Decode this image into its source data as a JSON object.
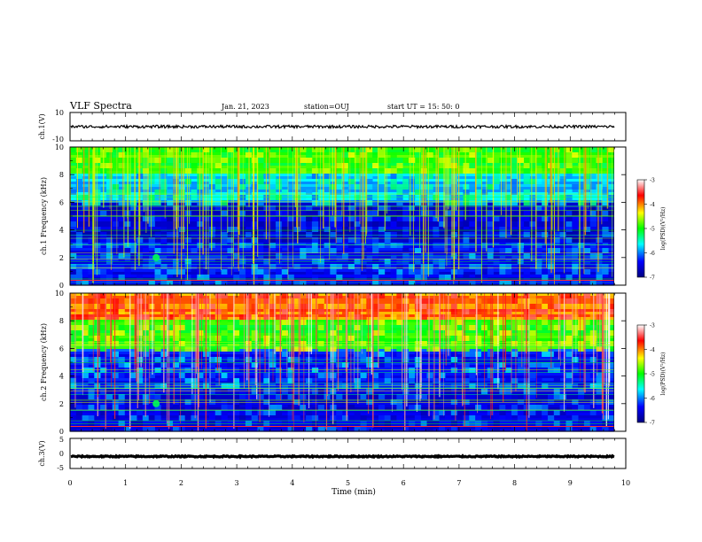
{
  "header": {
    "title": "VLF Spectra",
    "date": "Jan. 21, 2023",
    "station": "station=OUJ",
    "start": "start UT = 15: 50: 0"
  },
  "chart_data": {
    "type": "heatmap",
    "xlabel": "Time (min)",
    "xlim": [
      0,
      10
    ],
    "x_ticks": [
      "0",
      "1",
      "2",
      "3",
      "4",
      "5",
      "6",
      "7",
      "8",
      "9",
      "10"
    ],
    "panels": [
      {
        "id": "ch1_waveform",
        "type": "line",
        "ylabel": "ch.1(V)",
        "ylim": [
          -10,
          10
        ],
        "y_ticks": [
          "10",
          "-10"
        ],
        "trace_level": 0,
        "trace_amplitude": 1
      },
      {
        "id": "ch1_spectrogram",
        "type": "heatmap",
        "ylabel": "ch.1 Frequency (kHz)",
        "ylim": [
          0,
          10
        ],
        "y_ticks": [
          "0",
          "2",
          "4",
          "6",
          "8",
          "10"
        ],
        "colorbar": {
          "label": "log(PSD)(V²/Hz)",
          "range": [
            -7,
            -3
          ],
          "ticks": [
            "-3",
            "-4",
            "-5",
            "-6",
            "-7"
          ]
        },
        "band_levels": [
          {
            "f_from": 8,
            "f_to": 10,
            "log_psd": -5.0
          },
          {
            "f_from": 6,
            "f_to": 8,
            "log_psd": -5.8
          },
          {
            "f_from": 3,
            "f_to": 6,
            "log_psd": -6.6
          },
          {
            "f_from": 0,
            "f_to": 3,
            "log_psd": -6.4
          }
        ],
        "features": [
          {
            "t_min": 1.55,
            "f_khz": 2.0,
            "log_psd": -5.2
          }
        ]
      },
      {
        "id": "ch2_spectrogram",
        "type": "heatmap",
        "ylabel": "ch.2 Frequency (kHz)",
        "ylim": [
          0,
          10
        ],
        "y_ticks": [
          "0",
          "2",
          "4",
          "6",
          "8",
          "10"
        ],
        "colorbar": {
          "label": "log(PSD)(V²/Hz)",
          "range": [
            -7,
            -3
          ],
          "ticks": [
            "-3",
            "-4",
            "-5",
            "-6",
            "-7"
          ]
        },
        "band_levels": [
          {
            "f_from": 8,
            "f_to": 10,
            "log_psd": -4.0
          },
          {
            "f_from": 6,
            "f_to": 8,
            "log_psd": -4.9
          },
          {
            "f_from": 3,
            "f_to": 6,
            "log_psd": -6.3
          },
          {
            "f_from": 0,
            "f_to": 3,
            "log_psd": -6.5
          }
        ],
        "features": [
          {
            "t_min": 1.55,
            "f_khz": 2.0,
            "log_psd": -5.2
          }
        ]
      },
      {
        "id": "ch3_waveform",
        "type": "line",
        "ylabel": "ch.3(V)",
        "ylim": [
          -5,
          5
        ],
        "y_ticks": [
          "5",
          "0",
          "-5"
        ],
        "trace_level": -1,
        "trace_amplitude": 0.2
      }
    ],
    "colormap": [
      "#000080",
      "#0000ff",
      "#00ffff",
      "#00ff00",
      "#ffff00",
      "#ff0000",
      "#ffffff"
    ]
  }
}
